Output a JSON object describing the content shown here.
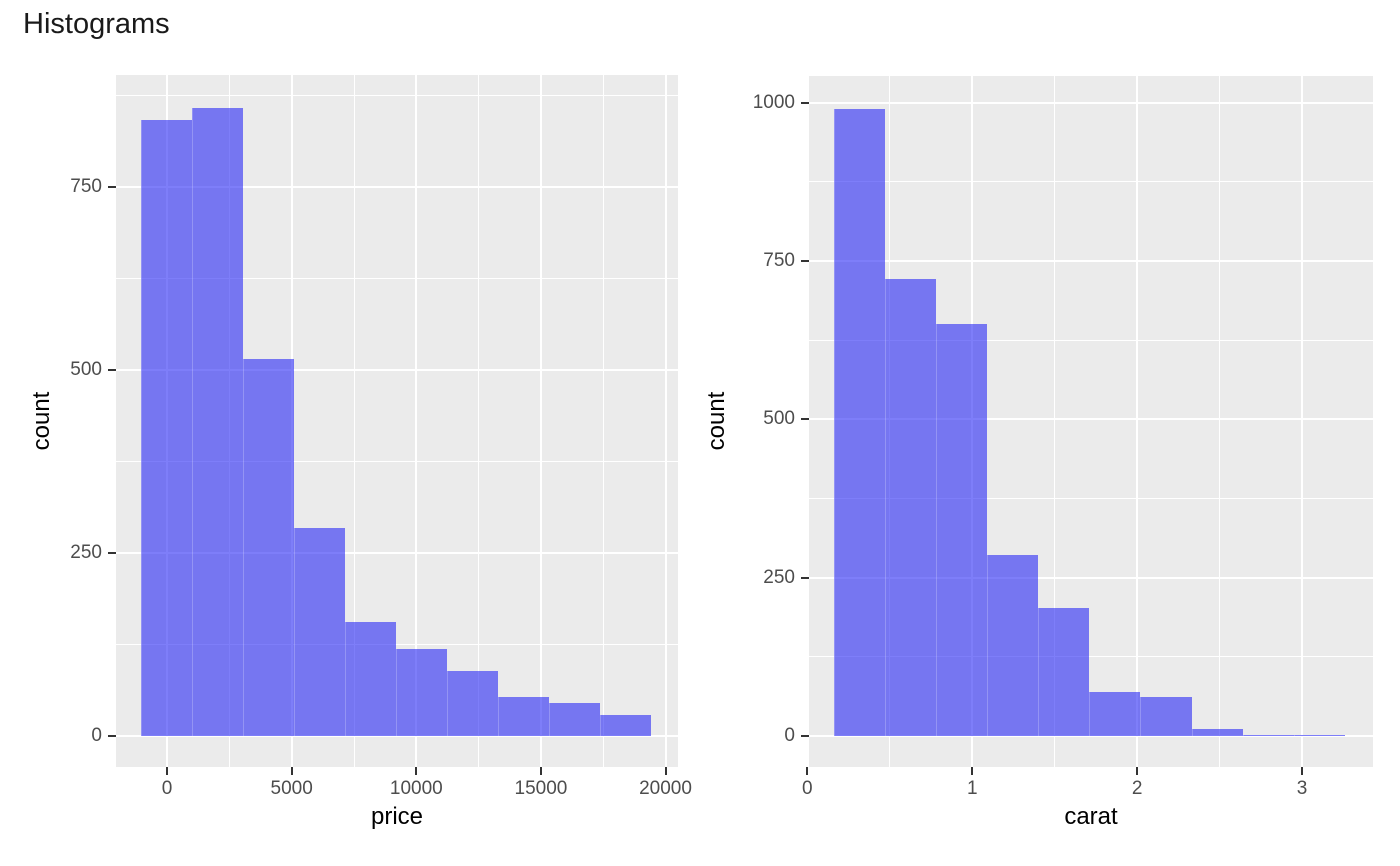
{
  "title": "Histograms",
  "colors": {
    "bar_fill": "rgba(40,40,245,0.60)",
    "bar_seam": "rgba(255,255,255,0.22)",
    "panel_bg": "#EBEBEB",
    "grid": "#FFFFFF",
    "tick_mark": "#333333",
    "tick_label": "#4D4D4D",
    "title_color": "#1A1A1A",
    "axis_title_color": "#000000"
  },
  "chart_data": [
    {
      "type": "bar",
      "subtype": "histogram",
      "title": "",
      "xlabel": "price",
      "ylabel": "count",
      "bin_edges": [
        -1040,
        1000,
        3050,
        5090,
        7140,
        9180,
        11230,
        13270,
        15310,
        17360,
        19400
      ],
      "counts": [
        842,
        858,
        515,
        284,
        156,
        119,
        89,
        53,
        45,
        29
      ],
      "x_ticks": [
        0,
        5000,
        10000,
        15000,
        20000
      ],
      "x_tick_labels": [
        "0",
        "5000",
        "10000",
        "15000",
        "20000"
      ],
      "y_ticks": [
        0,
        250,
        500,
        750
      ],
      "y_tick_labels": [
        "0",
        "250",
        "500",
        "750"
      ],
      "x_minor_ticks": [
        2500,
        7500,
        12500,
        17500
      ],
      "y_minor_ticks": [
        125,
        375,
        625,
        875
      ],
      "xlim": [
        -2050,
        20500
      ],
      "ylim": [
        -42,
        903
      ],
      "grid": "on",
      "legend": "none"
    },
    {
      "type": "bar",
      "subtype": "histogram",
      "title": "",
      "xlabel": "carat",
      "ylabel": "count",
      "bin_edges": [
        0.16,
        0.47,
        0.78,
        1.09,
        1.4,
        1.71,
        2.02,
        2.33,
        2.64,
        2.95,
        3.26
      ],
      "counts": [
        990,
        722,
        651,
        285,
        202,
        69,
        62,
        11,
        2,
        2
      ],
      "x_ticks": [
        0,
        1,
        2,
        3
      ],
      "x_tick_labels": [
        "0",
        "1",
        "2",
        "3"
      ],
      "y_ticks": [
        0,
        250,
        500,
        750,
        1000
      ],
      "y_tick_labels": [
        "0",
        "250",
        "500",
        "750",
        "1000"
      ],
      "x_minor_ticks": [
        0.5,
        1.5,
        2.5
      ],
      "y_minor_ticks": [
        125,
        375,
        625,
        875
      ],
      "xlim": [
        0.01,
        3.43
      ],
      "ylim": [
        -49,
        1042
      ],
      "grid": "on",
      "legend": "none"
    }
  ]
}
